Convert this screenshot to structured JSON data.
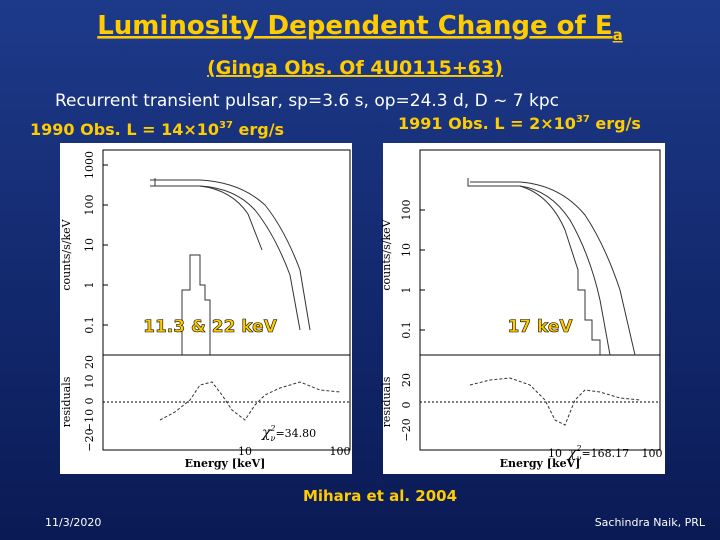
{
  "title": {
    "text": "Luminosity Dependent Change of E",
    "subscript": "a"
  },
  "subtitle": "(Ginga  Obs. Of 4U0115+63)",
  "description": "Recurrent transient pulsar, sp=3.6 s, op=24.3 d,  D ~ 7 kpc",
  "observations": [
    {
      "label": "1990 Obs.  L = 14×10",
      "exponent": "37",
      "unit": " erg/s"
    },
    {
      "label": "1991 Obs.  L = 2×10",
      "exponent": "37",
      "unit": " erg/s"
    }
  ],
  "plots": [
    {
      "annotation": "11.3 & 22 keV",
      "y_axis_label": "counts/s/keV",
      "y_ticks": [
        "1000",
        "100",
        "10",
        "1",
        "0.1"
      ],
      "residual_label": "residuals",
      "residual_ticks": [
        "20",
        "10",
        "0",
        "−10",
        "−20"
      ],
      "x_axis_label": "Energy  [keV]",
      "x_ticks": [
        "10",
        "100"
      ],
      "chi_symbol": "χ",
      "chi_sub": "ν",
      "chi_sup": "2",
      "chi_value": "=34.80"
    },
    {
      "annotation": "17 keV",
      "y_axis_label": "counts/s/keV",
      "y_ticks": [
        "100",
        "10",
        "1",
        "0.1"
      ],
      "residual_label": "residuals",
      "residual_ticks": [
        "20",
        "0",
        "−20"
      ],
      "x_axis_label": "Energy  [keV]",
      "x_ticks": [
        "10",
        "100"
      ],
      "chi_symbol": "χ",
      "chi_sub": "ν",
      "chi_sup": "2",
      "chi_value": "=168.17"
    }
  ],
  "citation": "Mihara  et al. 2004",
  "footer": {
    "date": "11/3/2020",
    "author": "Sachindra Naik, PRL"
  }
}
